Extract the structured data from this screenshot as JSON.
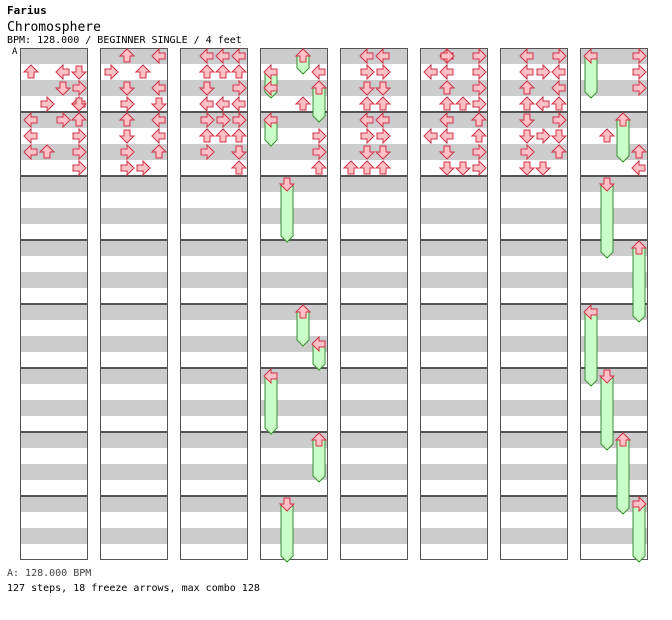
{
  "header": {
    "artist": "Farius",
    "song_title": "Chromosphere",
    "chart_info": "BPM: 128.000 / BEGINNER SINGLE / 4 feet",
    "bpm_marker": "A"
  },
  "footer": {
    "bpm_line": "A: 128.000 BPM",
    "stats_line": "127 steps, 18 freeze arrows, max combo 128"
  },
  "colors": {
    "arrow_fill": "#ffc0c8",
    "arrow_stroke": "#d23246",
    "freeze_fill": "#c8ffc8",
    "freeze_stroke": "#3c8c3c",
    "stripe_gray": "#cccccc",
    "measure_border": "#555555"
  },
  "lanes": [
    "left",
    "down",
    "up",
    "right"
  ],
  "columns": [
    {
      "notes": [
        [
          5,
          0,
          "left"
        ],
        [
          6,
          0,
          "left"
        ],
        [
          5,
          3,
          "right"
        ],
        [
          6,
          3,
          "right"
        ],
        [
          1,
          2,
          "left"
        ],
        [
          3,
          3,
          "left"
        ],
        [
          4,
          0,
          "left"
        ],
        [
          4,
          2,
          "right"
        ],
        [
          6,
          1,
          "up"
        ],
        [
          7,
          3,
          "right"
        ],
        [
          1,
          0,
          "up"
        ],
        [
          1,
          3,
          "down"
        ],
        [
          2,
          2,
          "down"
        ],
        [
          2,
          3,
          "right"
        ],
        [
          3,
          1,
          "right"
        ],
        [
          3,
          3,
          "down"
        ],
        [
          4,
          3,
          "up"
        ]
      ]
    },
    {
      "notes": [
        [
          0,
          1,
          "up"
        ],
        [
          0,
          3,
          "left"
        ],
        [
          1,
          0,
          "right"
        ],
        [
          1,
          2,
          "up"
        ],
        [
          2,
          1,
          "down"
        ],
        [
          2,
          3,
          "left"
        ],
        [
          3,
          1,
          "right"
        ],
        [
          3,
          3,
          "down"
        ],
        [
          4,
          1,
          "up"
        ],
        [
          4,
          3,
          "left"
        ],
        [
          5,
          1,
          "down"
        ],
        [
          5,
          3,
          "left"
        ],
        [
          6,
          1,
          "right"
        ],
        [
          6,
          3,
          "up"
        ],
        [
          7,
          1,
          "right"
        ],
        [
          7,
          2,
          "right"
        ]
      ]
    },
    {
      "notes": [
        [
          0,
          1,
          "left"
        ],
        [
          0,
          2,
          "left"
        ],
        [
          0,
          3,
          "left"
        ],
        [
          1,
          1,
          "up"
        ],
        [
          1,
          2,
          "up"
        ],
        [
          1,
          3,
          "up"
        ],
        [
          2,
          1,
          "down"
        ],
        [
          2,
          3,
          "right"
        ],
        [
          3,
          1,
          "left"
        ],
        [
          3,
          2,
          "left"
        ],
        [
          3,
          3,
          "left"
        ],
        [
          4,
          1,
          "right"
        ],
        [
          4,
          2,
          "right"
        ],
        [
          4,
          3,
          "right"
        ],
        [
          5,
          1,
          "up"
        ],
        [
          5,
          2,
          "up"
        ],
        [
          5,
          3,
          "up"
        ],
        [
          6,
          1,
          "right"
        ],
        [
          6,
          3,
          "down"
        ],
        [
          7,
          3,
          "up"
        ]
      ]
    },
    {
      "notes": [
        [
          2,
          0,
          "left"
        ],
        [
          1,
          3,
          "left"
        ],
        [
          3,
          2,
          "up"
        ],
        [
          5,
          3,
          "right"
        ],
        [
          6,
          3,
          "right"
        ],
        [
          7,
          3,
          "up"
        ]
      ],
      "freezes": [
        {
          "lane": 2,
          "dir": "up",
          "start": 0.0,
          "end": 1.0
        },
        {
          "lane": 0,
          "dir": "left",
          "start": 1.0,
          "end": 2.5
        },
        {
          "lane": 3,
          "dir": "up",
          "start": 2.0,
          "end": 4.0
        },
        {
          "lane": 0,
          "dir": "left",
          "start": 4.0,
          "end": 5.5
        },
        {
          "lane": 1,
          "dir": "down",
          "start": 8.0,
          "end": 11.5
        },
        {
          "lane": 2,
          "dir": "up",
          "start": 16.0,
          "end": 18.0
        },
        {
          "lane": 3,
          "dir": "left",
          "start": 18.0,
          "end": 19.5
        },
        {
          "lane": 0,
          "dir": "left",
          "start": 20.0,
          "end": 23.5
        },
        {
          "lane": 3,
          "dir": "up",
          "start": 24.0,
          "end": 26.5
        },
        {
          "lane": 1,
          "dir": "down",
          "start": 28.0,
          "end": 31.5
        }
      ]
    },
    {
      "notes": [
        [
          0,
          1,
          "left"
        ],
        [
          0,
          2,
          "left"
        ],
        [
          1,
          1,
          "right"
        ],
        [
          1,
          2,
          "right"
        ],
        [
          2,
          1,
          "down"
        ],
        [
          2,
          2,
          "down"
        ],
        [
          3,
          1,
          "up"
        ],
        [
          3,
          2,
          "up"
        ],
        [
          4,
          1,
          "left"
        ],
        [
          4,
          2,
          "left"
        ],
        [
          5,
          1,
          "right"
        ],
        [
          5,
          2,
          "right"
        ],
        [
          6,
          1,
          "down"
        ],
        [
          6,
          2,
          "down"
        ],
        [
          7,
          0,
          "up"
        ],
        [
          7,
          1,
          "up"
        ],
        [
          7,
          2,
          "up"
        ]
      ]
    },
    {
      "notes": [
        [
          0,
          1,
          "left"
        ],
        [
          0,
          1,
          "right"
        ],
        [
          0,
          3,
          "right"
        ],
        [
          1,
          0,
          "left"
        ],
        [
          1,
          1,
          "left"
        ],
        [
          1,
          3,
          "right"
        ],
        [
          2,
          1,
          "up"
        ],
        [
          2,
          3,
          "right"
        ],
        [
          3,
          1,
          "up"
        ],
        [
          3,
          2,
          "up"
        ],
        [
          3,
          3,
          "right"
        ],
        [
          4,
          1,
          "left"
        ],
        [
          4,
          3,
          "up"
        ],
        [
          5,
          0,
          "left"
        ],
        [
          5,
          1,
          "left"
        ],
        [
          5,
          3,
          "up"
        ],
        [
          6,
          1,
          "down"
        ],
        [
          6,
          3,
          "right"
        ],
        [
          7,
          1,
          "down"
        ],
        [
          7,
          2,
          "down"
        ],
        [
          7,
          3,
          "right"
        ]
      ]
    },
    {
      "notes": [
        [
          0,
          1,
          "left"
        ],
        [
          0,
          3,
          "right"
        ],
        [
          1,
          1,
          "left"
        ],
        [
          1,
          2,
          "right"
        ],
        [
          1,
          3,
          "left"
        ],
        [
          2,
          1,
          "up"
        ],
        [
          2,
          3,
          "left"
        ],
        [
          3,
          1,
          "up"
        ],
        [
          3,
          2,
          "left"
        ],
        [
          3,
          3,
          "up"
        ],
        [
          4,
          1,
          "down"
        ],
        [
          4,
          3,
          "right"
        ],
        [
          5,
          1,
          "down"
        ],
        [
          5,
          2,
          "right"
        ],
        [
          5,
          3,
          "down"
        ],
        [
          6,
          1,
          "right"
        ],
        [
          6,
          3,
          "up"
        ],
        [
          7,
          1,
          "down"
        ],
        [
          7,
          2,
          "down"
        ]
      ]
    },
    {
      "notes": [
        [
          7,
          3,
          "left"
        ],
        [
          6,
          3,
          "up"
        ],
        [
          5,
          1,
          "up"
        ],
        [
          2,
          3,
          "right"
        ],
        [
          1,
          3,
          "right"
        ],
        [
          0,
          3,
          "right"
        ]
      ],
      "freezes": [
        {
          "lane": 0,
          "dir": "left",
          "start": 0.0,
          "end": 2.5
        },
        {
          "lane": 2,
          "dir": "up",
          "start": 4.0,
          "end": 6.5
        },
        {
          "lane": 1,
          "dir": "down",
          "start": 8.0,
          "end": 12.5
        },
        {
          "lane": 3,
          "dir": "up",
          "start": 12.0,
          "end": 16.5
        },
        {
          "lane": 0,
          "dir": "left",
          "start": 16.0,
          "end": 20.5
        },
        {
          "lane": 1,
          "dir": "down",
          "start": 20.0,
          "end": 24.5
        },
        {
          "lane": 2,
          "dir": "up",
          "start": 24.0,
          "end": 28.5
        },
        {
          "lane": 3,
          "dir": "right",
          "start": 28.0,
          "end": 31.5
        }
      ]
    }
  ]
}
